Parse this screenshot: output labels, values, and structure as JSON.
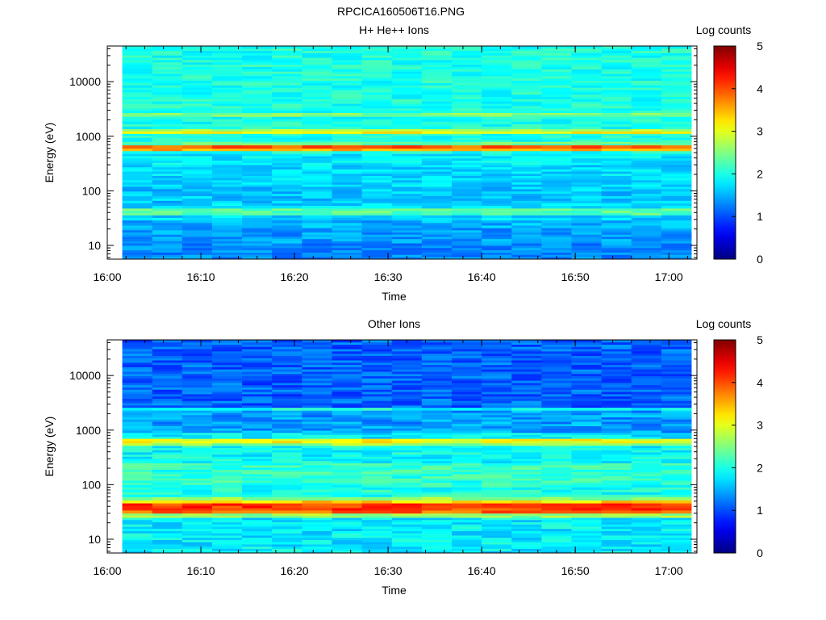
{
  "figure": {
    "title": "RPCICA160506T16.PNG"
  },
  "chart_data": [
    {
      "type": "heatmap",
      "title": "H+ He++ Ions",
      "xlabel": "Time",
      "ylabel": "Energy (eV)",
      "x_ticks": [
        "16:00",
        "16:10",
        "16:20",
        "16:30",
        "16:40",
        "16:50",
        "17:00"
      ],
      "x_tick_minutes": [
        0,
        10,
        20,
        30,
        40,
        50,
        60
      ],
      "xlim_minutes": [
        0,
        63
      ],
      "data_start_minutes": 1.6,
      "column_width_minutes": 3.2,
      "columns": 19,
      "y_scale": "log",
      "ylim": [
        5.6,
        45000
      ],
      "y_ticks": [
        10,
        100,
        1000,
        10000
      ],
      "y_tick_labels": [
        "10",
        "100",
        "1000",
        "10000"
      ],
      "colorbar": {
        "label": "Log counts",
        "range": [
          0,
          5
        ],
        "ticks": [
          "0",
          "1",
          "2",
          "3",
          "4",
          "5"
        ],
        "colormap": "jet"
      },
      "bands": [
        {
          "emin": 5.6,
          "emax": 11,
          "level": 1.3
        },
        {
          "emin": 11,
          "emax": 21,
          "level": 1.4
        },
        {
          "emin": 21,
          "emax": 29,
          "level": 1.5
        },
        {
          "emin": 29,
          "emax": 36,
          "level": 1.7
        },
        {
          "emin": 36,
          "emax": 48,
          "level": 2.3
        },
        {
          "emin": 48,
          "emax": 60,
          "level": 1.7
        },
        {
          "emin": 60,
          "emax": 120,
          "level": 1.6
        },
        {
          "emin": 120,
          "emax": 300,
          "level": 1.7
        },
        {
          "emin": 300,
          "emax": 480,
          "level": 1.8
        },
        {
          "emin": 480,
          "emax": 540,
          "level": 2.0
        },
        {
          "emin": 540,
          "emax": 600,
          "level": 3.5
        },
        {
          "emin": 600,
          "emax": 690,
          "level": 3.9
        },
        {
          "emin": 690,
          "emax": 800,
          "level": 2.4
        },
        {
          "emin": 800,
          "emax": 1120,
          "level": 2.0
        },
        {
          "emin": 1120,
          "emax": 1240,
          "level": 3.2
        },
        {
          "emin": 1240,
          "emax": 1370,
          "level": 2.7
        },
        {
          "emin": 1370,
          "emax": 2300,
          "level": 2.0
        },
        {
          "emin": 2300,
          "emax": 2700,
          "level": 2.5
        },
        {
          "emin": 2700,
          "emax": 45000,
          "level": 2.0
        }
      ],
      "variation": 0.25
    },
    {
      "type": "heatmap",
      "title": "Other Ions",
      "xlabel": "Time",
      "ylabel": "Energy (eV)",
      "x_ticks": [
        "16:00",
        "16:10",
        "16:20",
        "16:30",
        "16:40",
        "16:50",
        "17:00"
      ],
      "x_tick_minutes": [
        0,
        10,
        20,
        30,
        40,
        50,
        60
      ],
      "xlim_minutes": [
        0,
        63
      ],
      "data_start_minutes": 1.6,
      "column_width_minutes": 3.2,
      "columns": 19,
      "y_scale": "log",
      "ylim": [
        5.6,
        45000
      ],
      "y_ticks": [
        10,
        100,
        1000,
        10000
      ],
      "y_tick_labels": [
        "10",
        "100",
        "1000",
        "10000"
      ],
      "colorbar": {
        "label": "Log counts",
        "range": [
          0,
          5
        ],
        "ticks": [
          "0",
          "1",
          "2",
          "3",
          "4",
          "5"
        ],
        "colormap": "jet"
      },
      "bands": [
        {
          "emin": 5.6,
          "emax": 25,
          "level": 1.8
        },
        {
          "emin": 25,
          "emax": 30,
          "level": 2.6
        },
        {
          "emin": 30,
          "emax": 34,
          "level": 3.9
        },
        {
          "emin": 34,
          "emax": 46,
          "level": 4.1
        },
        {
          "emin": 46,
          "emax": 52,
          "level": 3.3
        },
        {
          "emin": 52,
          "emax": 60,
          "level": 2.6
        },
        {
          "emin": 60,
          "emax": 100,
          "level": 2.0
        },
        {
          "emin": 100,
          "emax": 250,
          "level": 2.1
        },
        {
          "emin": 250,
          "emax": 520,
          "level": 1.9
        },
        {
          "emin": 520,
          "emax": 580,
          "level": 2.6
        },
        {
          "emin": 580,
          "emax": 700,
          "level": 3.1
        },
        {
          "emin": 700,
          "emax": 900,
          "level": 1.8
        },
        {
          "emin": 900,
          "emax": 2300,
          "level": 1.4
        },
        {
          "emin": 2300,
          "emax": 2600,
          "level": 1.9
        },
        {
          "emin": 2600,
          "emax": 45000,
          "level": 1.1
        }
      ],
      "variation": 0.3
    }
  ]
}
